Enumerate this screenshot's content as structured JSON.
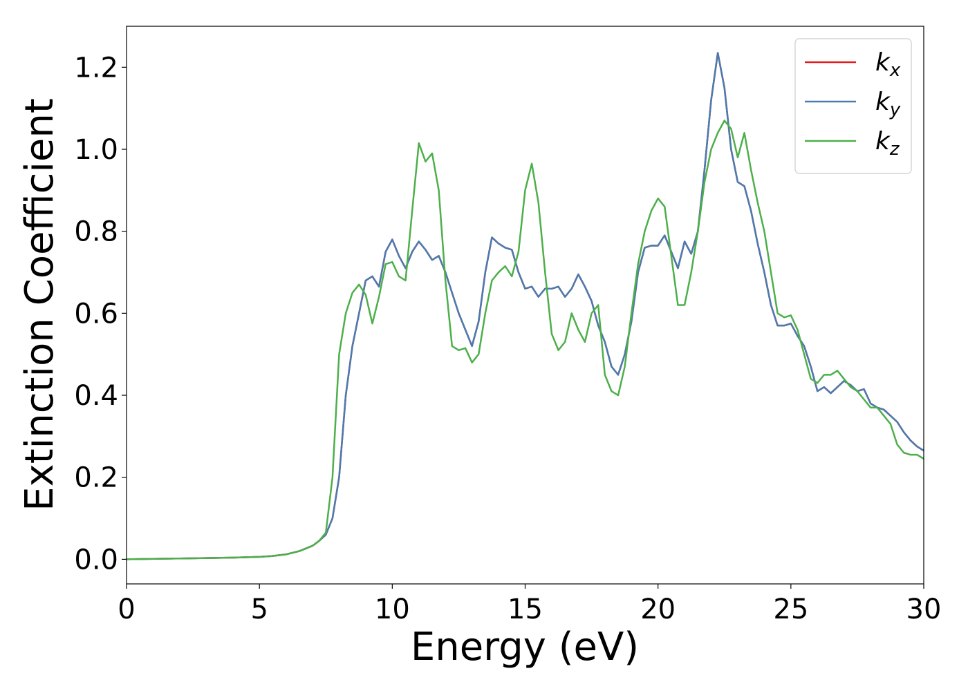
{
  "chart_data": {
    "type": "line",
    "xlabel": "Energy (eV)",
    "ylabel": "Extinction Coefficient",
    "xlim": [
      0,
      30
    ],
    "ylim": [
      -0.06,
      1.3
    ],
    "xticks": [
      0,
      5,
      10,
      15,
      20,
      25,
      30
    ],
    "yticks": [
      {
        "value": 0,
        "label": "0.0"
      },
      0.2,
      0.4,
      0.6,
      0.8,
      {
        "value": 1,
        "label": "1.0"
      },
      1.2
    ],
    "legend": "upper right",
    "x": [
      0,
      1,
      2,
      3,
      4,
      5,
      5.5,
      6,
      6.5,
      7,
      7.25,
      7.5,
      7.75,
      8,
      8.25,
      8.5,
      8.75,
      9,
      9.25,
      9.5,
      9.75,
      10,
      10.25,
      10.5,
      10.75,
      11,
      11.25,
      11.5,
      11.75,
      12,
      12.25,
      12.5,
      12.75,
      13,
      13.25,
      13.5,
      13.75,
      14,
      14.25,
      14.5,
      14.75,
      15,
      15.25,
      15.5,
      15.75,
      16,
      16.25,
      16.5,
      16.75,
      17,
      17.25,
      17.5,
      17.75,
      18,
      18.25,
      18.5,
      18.75,
      19,
      19.25,
      19.5,
      19.75,
      20,
      20.25,
      20.5,
      20.75,
      21,
      21.25,
      21.5,
      21.75,
      22,
      22.25,
      22.5,
      22.75,
      23,
      23.25,
      23.5,
      23.75,
      24,
      24.25,
      24.5,
      24.75,
      25,
      25.25,
      25.5,
      25.75,
      26,
      26.25,
      26.5,
      26.75,
      27,
      27.25,
      27.5,
      27.75,
      28,
      28.25,
      28.5,
      28.75,
      29,
      29.25,
      29.5,
      29.75,
      30
    ],
    "series": [
      {
        "name": "kx",
        "color": "#e41a1c",
        "values": [
          0,
          0.001,
          0.002,
          0.003,
          0.004,
          0.006,
          0.008,
          0.012,
          0.02,
          0.033,
          0.045,
          0.06,
          0.1,
          0.2,
          0.4,
          0.52,
          0.6,
          0.68,
          0.69,
          0.665,
          0.75,
          0.78,
          0.74,
          0.71,
          0.75,
          0.775,
          0.755,
          0.73,
          0.74,
          0.7,
          0.65,
          0.6,
          0.56,
          0.52,
          0.58,
          0.7,
          0.785,
          0.77,
          0.76,
          0.755,
          0.7,
          0.66,
          0.665,
          0.64,
          0.66,
          0.66,
          0.665,
          0.64,
          0.66,
          0.695,
          0.665,
          0.63,
          0.57,
          0.53,
          0.47,
          0.45,
          0.5,
          0.58,
          0.7,
          0.76,
          0.765,
          0.765,
          0.79,
          0.75,
          0.71,
          0.775,
          0.745,
          0.8,
          0.95,
          1.12,
          1.235,
          1.15,
          1.0,
          0.92,
          0.91,
          0.85,
          0.77,
          0.7,
          0.62,
          0.57,
          0.57,
          0.575,
          0.545,
          0.52,
          0.47,
          0.41,
          0.42,
          0.405,
          0.42,
          0.435,
          0.425,
          0.41,
          0.415,
          0.38,
          0.37,
          0.365,
          0.35,
          0.335,
          0.31,
          0.29,
          0.275,
          0.265
        ]
      },
      {
        "name": "ky",
        "color": "#4a7bb0",
        "values": [
          0,
          0.001,
          0.002,
          0.003,
          0.004,
          0.006,
          0.008,
          0.012,
          0.02,
          0.033,
          0.045,
          0.06,
          0.1,
          0.2,
          0.4,
          0.52,
          0.6,
          0.68,
          0.69,
          0.665,
          0.75,
          0.78,
          0.74,
          0.71,
          0.75,
          0.775,
          0.755,
          0.73,
          0.74,
          0.7,
          0.65,
          0.6,
          0.56,
          0.52,
          0.58,
          0.7,
          0.785,
          0.77,
          0.76,
          0.755,
          0.7,
          0.66,
          0.665,
          0.64,
          0.66,
          0.66,
          0.665,
          0.64,
          0.66,
          0.695,
          0.665,
          0.63,
          0.57,
          0.53,
          0.47,
          0.45,
          0.5,
          0.58,
          0.7,
          0.76,
          0.765,
          0.765,
          0.79,
          0.75,
          0.71,
          0.775,
          0.745,
          0.8,
          0.95,
          1.12,
          1.235,
          1.15,
          1.0,
          0.92,
          0.91,
          0.85,
          0.77,
          0.7,
          0.62,
          0.57,
          0.57,
          0.575,
          0.545,
          0.52,
          0.47,
          0.41,
          0.42,
          0.405,
          0.42,
          0.435,
          0.425,
          0.41,
          0.415,
          0.38,
          0.37,
          0.365,
          0.35,
          0.335,
          0.31,
          0.29,
          0.275,
          0.265
        ]
      },
      {
        "name": "kz",
        "color": "#4daf4a",
        "values": [
          0,
          0.001,
          0.002,
          0.003,
          0.004,
          0.006,
          0.008,
          0.012,
          0.02,
          0.033,
          0.045,
          0.065,
          0.2,
          0.5,
          0.6,
          0.65,
          0.67,
          0.645,
          0.575,
          0.64,
          0.72,
          0.725,
          0.69,
          0.68,
          0.85,
          1.015,
          0.97,
          0.99,
          0.9,
          0.68,
          0.52,
          0.51,
          0.515,
          0.48,
          0.5,
          0.6,
          0.68,
          0.7,
          0.715,
          0.69,
          0.75,
          0.9,
          0.965,
          0.87,
          0.7,
          0.55,
          0.51,
          0.53,
          0.6,
          0.56,
          0.53,
          0.6,
          0.62,
          0.45,
          0.41,
          0.4,
          0.47,
          0.6,
          0.72,
          0.8,
          0.85,
          0.88,
          0.86,
          0.74,
          0.62,
          0.62,
          0.7,
          0.8,
          0.92,
          1.0,
          1.04,
          1.07,
          1.05,
          0.98,
          1.04,
          0.95,
          0.87,
          0.8,
          0.7,
          0.6,
          0.59,
          0.595,
          0.56,
          0.5,
          0.44,
          0.43,
          0.45,
          0.45,
          0.46,
          0.44,
          0.42,
          0.41,
          0.39,
          0.37,
          0.37,
          0.35,
          0.33,
          0.28,
          0.26,
          0.255,
          0.255,
          0.245
        ]
      }
    ]
  }
}
